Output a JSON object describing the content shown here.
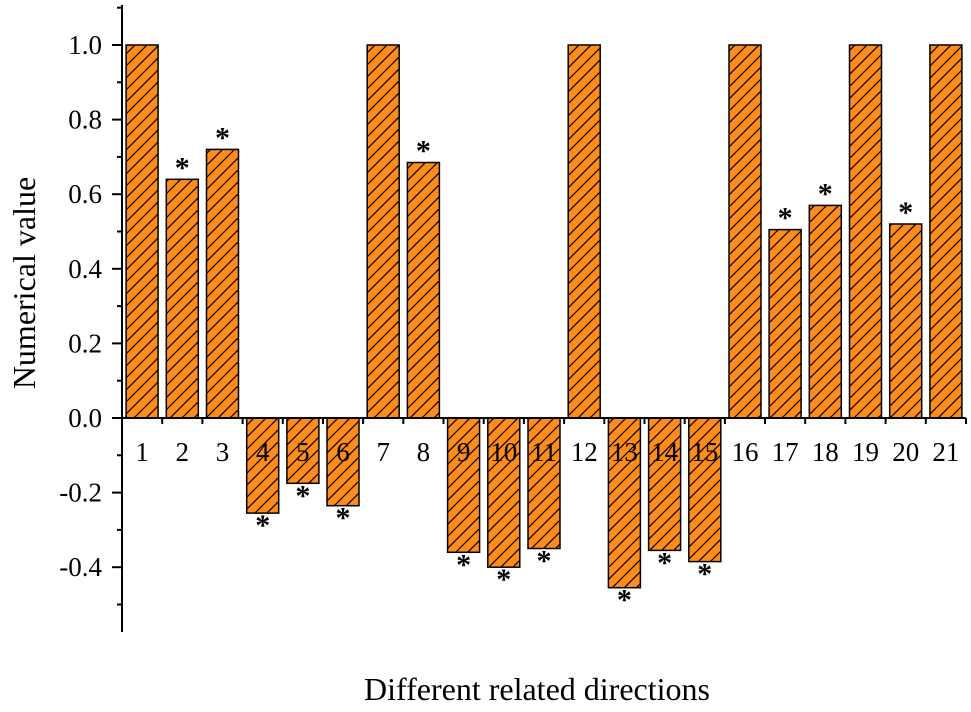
{
  "chart_data": {
    "type": "bar",
    "title": "",
    "xlabel": "Different related directions",
    "ylabel": "Numerical value",
    "ylim": [
      -0.57,
      1.12
    ],
    "yticks": [
      "1.0",
      "0.8",
      "0.6",
      "0.4",
      "0.2",
      "0.0",
      "-0.2",
      "-0.4"
    ],
    "ytick_values": [
      1.0,
      0.8,
      0.6,
      0.4,
      0.2,
      0.0,
      -0.2,
      -0.4
    ],
    "categories": [
      "1",
      "2",
      "3",
      "4",
      "5",
      "6",
      "7",
      "8",
      "9",
      "10",
      "11",
      "12",
      "13",
      "14",
      "15",
      "16",
      "17",
      "18",
      "19",
      "20",
      "21"
    ],
    "values": [
      1.0,
      0.64,
      0.72,
      -0.255,
      -0.175,
      -0.235,
      1.0,
      0.685,
      -0.36,
      -0.4,
      -0.35,
      1.0,
      -0.455,
      -0.355,
      -0.385,
      1.0,
      0.505,
      0.57,
      1.0,
      0.52,
      1.0
    ],
    "significance_marker": "*",
    "significant": [
      false,
      true,
      true,
      true,
      true,
      true,
      false,
      true,
      true,
      true,
      true,
      false,
      true,
      true,
      true,
      false,
      true,
      true,
      false,
      true,
      false
    ],
    "bar_color": "#FF8C1A",
    "hatch_color": "#000000",
    "grid": false,
    "legend": "none"
  }
}
